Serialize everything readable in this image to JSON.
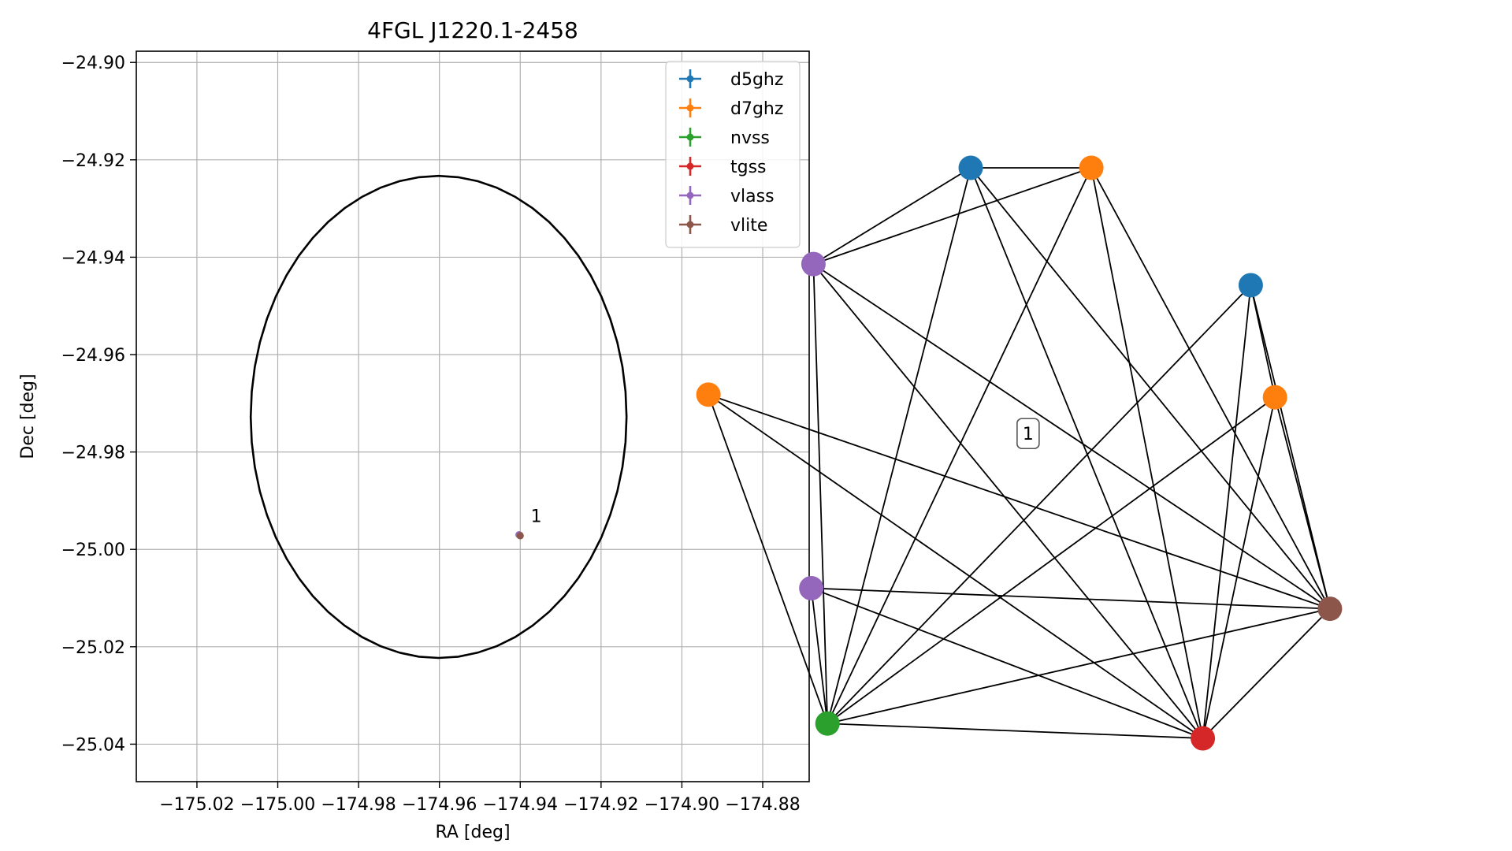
{
  "chart_data": [
    {
      "type": "scatter",
      "title": "4FGL J1220.1-2458",
      "xlabel": "RA [deg]",
      "ylabel": "Dec [deg]",
      "xlim": [
        -175.035,
        -174.8685
      ],
      "ylim": [
        -25.0477,
        -24.8977
      ],
      "xticks": [
        -175.02,
        -175.0,
        -174.98,
        -174.96,
        -174.94,
        -174.92,
        -174.9,
        -174.88
      ],
      "xtick_labels": [
        "−175.02",
        "−175.00",
        "−174.98",
        "−174.96",
        "−174.94",
        "−174.92",
        "−174.90",
        "−174.88"
      ],
      "yticks": [
        -24.9,
        -24.92,
        -24.94,
        -24.96,
        -24.98,
        -25.0,
        -25.02,
        -25.04
      ],
      "ytick_labels": [
        "−24.90",
        "−24.92",
        "−24.94",
        "−24.96",
        "−24.98",
        "−25.00",
        "−25.02",
        "−25.04"
      ],
      "grid": true,
      "legend_position": "top-right",
      "ellipse": {
        "center": [
          -174.9602,
          -24.9728
        ],
        "ra_half_width": 0.0465,
        "dec_half_height": 0.0495,
        "color": "#000000"
      },
      "legend": [
        {
          "name": "d5ghz",
          "color": "#1f77b4"
        },
        {
          "name": "d7ghz",
          "color": "#ff7f0e"
        },
        {
          "name": "nvss",
          "color": "#2ca02c"
        },
        {
          "name": "tgss",
          "color": "#d62728"
        },
        {
          "name": "vlass",
          "color": "#9467bd"
        },
        {
          "name": "vlite",
          "color": "#8c564b"
        }
      ],
      "points": [
        {
          "series": "d5ghz",
          "x": -174.9403,
          "y": -24.997
        },
        {
          "series": "d7ghz",
          "x": -174.9402,
          "y": -24.997
        },
        {
          "series": "nvss",
          "x": -174.9401,
          "y": -24.9971
        },
        {
          "series": "tgss",
          "x": -174.94,
          "y": -24.9972
        },
        {
          "series": "vlass",
          "x": -174.9403,
          "y": -24.997
        },
        {
          "series": "vlite",
          "x": -174.94,
          "y": -24.9972
        }
      ],
      "annotations": [
        {
          "text": "1",
          "x": -174.9374,
          "y": -24.9944
        }
      ]
    },
    {
      "type": "network",
      "label": "1",
      "nodes": [
        {
          "id": "d5a",
          "color": "#1f77b4",
          "x": 0.0,
          "y": 1.0
        },
        {
          "id": "d7a",
          "color": "#ff7f0e",
          "x": 0.224,
          "y": 1.0
        },
        {
          "id": "vlassA",
          "color": "#9467bd",
          "x": -0.292,
          "y": 0.818
        },
        {
          "id": "d5b",
          "color": "#1f77b4",
          "x": 0.52,
          "y": 0.778
        },
        {
          "id": "d7b",
          "color": "#ff7f0e",
          "x": 0.565,
          "y": 0.566
        },
        {
          "id": "d7c",
          "color": "#ff7f0e",
          "x": -0.487,
          "y": 0.571
        },
        {
          "id": "vlassB",
          "color": "#9467bd",
          "x": -0.296,
          "y": 0.205
        },
        {
          "id": "vlite",
          "color": "#8c564b",
          "x": 0.667,
          "y": 0.166
        },
        {
          "id": "nvss",
          "color": "#2ca02c",
          "x": -0.266,
          "y": -0.051
        },
        {
          "id": "tgss",
          "color": "#d62728",
          "x": 0.431,
          "y": -0.079
        }
      ],
      "edges": [
        [
          "d5a",
          "d7a"
        ],
        [
          "d5a",
          "vlassA"
        ],
        [
          "d5a",
          "nvss"
        ],
        [
          "d5a",
          "tgss"
        ],
        [
          "d5a",
          "vlite"
        ],
        [
          "d7a",
          "vlassA"
        ],
        [
          "d7a",
          "nvss"
        ],
        [
          "d7a",
          "tgss"
        ],
        [
          "d7a",
          "vlite"
        ],
        [
          "vlassA",
          "nvss"
        ],
        [
          "vlassA",
          "tgss"
        ],
        [
          "vlassA",
          "vlite"
        ],
        [
          "d5b",
          "d7b"
        ],
        [
          "d5b",
          "nvss"
        ],
        [
          "d5b",
          "tgss"
        ],
        [
          "d5b",
          "vlite"
        ],
        [
          "d7b",
          "nvss"
        ],
        [
          "d7b",
          "tgss"
        ],
        [
          "d7b",
          "vlite"
        ],
        [
          "d7c",
          "nvss"
        ],
        [
          "d7c",
          "tgss"
        ],
        [
          "d7c",
          "vlite"
        ],
        [
          "vlassB",
          "nvss"
        ],
        [
          "vlassB",
          "tgss"
        ],
        [
          "vlassB",
          "vlite"
        ],
        [
          "nvss",
          "tgss"
        ],
        [
          "nvss",
          "vlite"
        ],
        [
          "tgss",
          "vlite"
        ]
      ]
    }
  ]
}
